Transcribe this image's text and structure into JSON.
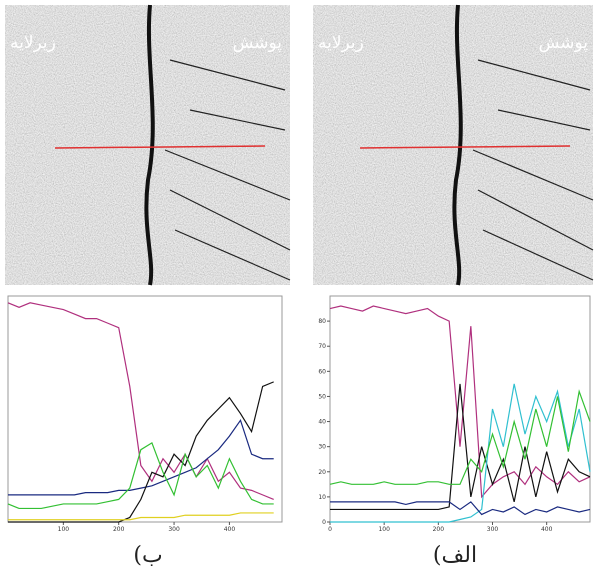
{
  "panels": [
    {
      "substrate_label": "زیرلایه",
      "coating_label": "پوشش",
      "caption": "(ب"
    },
    {
      "substrate_label": "زیرلایه",
      "coating_label": "پوشش",
      "caption": "(الف"
    }
  ],
  "chart_data": [
    {
      "type": "line",
      "x": [
        0,
        20,
        40,
        60,
        80,
        100,
        120,
        140,
        160,
        180,
        200,
        220,
        240,
        260,
        280,
        300,
        320,
        340,
        360,
        380,
        400,
        420,
        440,
        460,
        480
      ],
      "xlim": [
        0,
        495
      ],
      "xticks": [
        100,
        200,
        300,
        400
      ],
      "ylim": [
        0,
        100
      ],
      "series": [
        {
          "color": "#b0307e",
          "values": [
            97,
            95,
            97,
            96,
            95,
            94,
            92,
            90,
            90,
            88,
            86,
            60,
            25,
            18,
            28,
            22,
            30,
            20,
            28,
            18,
            22,
            15,
            14,
            12,
            10
          ]
        },
        {
          "color": "#1a2a80",
          "values": [
            12,
            12,
            12,
            12,
            12,
            12,
            12,
            13,
            13,
            13,
            14,
            14,
            15,
            16,
            18,
            20,
            22,
            24,
            28,
            32,
            38,
            45,
            30,
            28,
            28
          ]
        },
        {
          "color": "#111111",
          "values": [
            0,
            0,
            0,
            0,
            0,
            0,
            0,
            0,
            0,
            0,
            0,
            2,
            10,
            22,
            20,
            30,
            25,
            38,
            45,
            50,
            55,
            48,
            40,
            60,
            62
          ]
        },
        {
          "color": "#33c033",
          "values": [
            8,
            6,
            6,
            6,
            7,
            8,
            8,
            8,
            8,
            9,
            10,
            15,
            32,
            35,
            22,
            12,
            30,
            20,
            25,
            15,
            28,
            18,
            10,
            8,
            8
          ]
        },
        {
          "color": "#e0d020",
          "values": [
            1,
            1,
            1,
            1,
            1,
            1,
            1,
            1,
            1,
            1,
            1,
            1,
            2,
            2,
            2,
            2,
            3,
            3,
            3,
            3,
            3,
            4,
            4,
            4,
            4
          ]
        }
      ]
    },
    {
      "type": "line",
      "x": [
        0,
        20,
        40,
        60,
        80,
        100,
        120,
        140,
        160,
        180,
        200,
        220,
        240,
        260,
        280,
        300,
        320,
        340,
        360,
        380,
        400,
        420,
        440,
        460,
        480
      ],
      "xlim": [
        0,
        480
      ],
      "xticks": [
        0,
        100,
        200,
        300,
        400
      ],
      "ylim": [
        0,
        90
      ],
      "yticks": [
        0,
        10,
        20,
        30,
        40,
        50,
        60,
        70,
        80
      ],
      "series": [
        {
          "color": "#b0307e",
          "values": [
            85,
            86,
            85,
            84,
            86,
            85,
            84,
            83,
            84,
            85,
            82,
            80,
            30,
            78,
            10,
            15,
            18,
            20,
            15,
            22,
            18,
            15,
            20,
            16,
            18
          ]
        },
        {
          "color": "#111111",
          "values": [
            5,
            5,
            5,
            5,
            5,
            5,
            5,
            5,
            5,
            5,
            5,
            6,
            55,
            10,
            30,
            15,
            25,
            8,
            30,
            10,
            28,
            12,
            25,
            20,
            18
          ]
        },
        {
          "color": "#30c0d0",
          "values": [
            0,
            0,
            0,
            0,
            0,
            0,
            0,
            0,
            0,
            0,
            0,
            0,
            1,
            2,
            5,
            45,
            30,
            55,
            35,
            50,
            40,
            52,
            30,
            45,
            20
          ]
        },
        {
          "color": "#33c033",
          "values": [
            15,
            16,
            15,
            15,
            15,
            16,
            15,
            15,
            15,
            16,
            16,
            15,
            15,
            25,
            20,
            35,
            22,
            40,
            25,
            45,
            30,
            50,
            28,
            52,
            40
          ]
        },
        {
          "color": "#1a2a80",
          "values": [
            8,
            8,
            8,
            8,
            8,
            8,
            8,
            7,
            8,
            8,
            8,
            8,
            5,
            8,
            3,
            5,
            4,
            6,
            3,
            5,
            4,
            6,
            5,
            4,
            5
          ]
        }
      ]
    }
  ]
}
